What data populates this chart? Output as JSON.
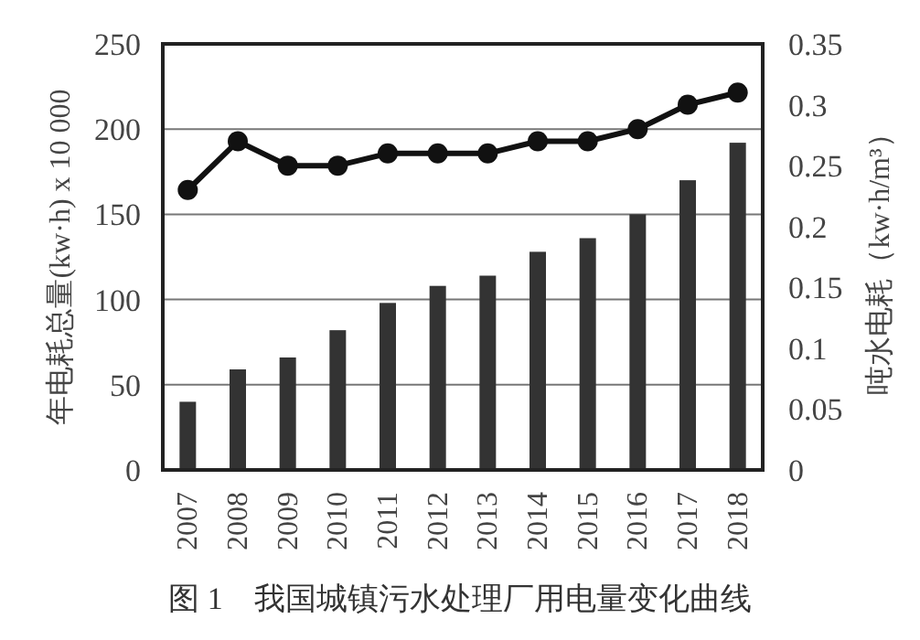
{
  "chart_data": {
    "type": "bar",
    "title": "图 1　我国城镇污水处理厂用电量变化曲线",
    "ylabel": "年电耗总量(kw·h) x 10 000",
    "y2label": "吨水电耗（kw·h/m³）",
    "categories": [
      "2007",
      "2008",
      "2009",
      "2010",
      "2011",
      "2012",
      "2013",
      "2014",
      "2015",
      "2016",
      "2017",
      "2018"
    ],
    "series": [
      {
        "color": "#333333",
        "values": [
          40,
          59,
          66,
          82,
          98,
          108,
          114,
          128,
          136,
          150,
          170,
          192
        ]
      },
      {
        "type": "line",
        "axis": "y2",
        "color": "#111111",
        "marker": "circle",
        "line_style": "solid",
        "values": [
          0.23,
          0.27,
          0.25,
          0.25,
          0.26,
          0.26,
          0.26,
          0.27,
          0.27,
          0.28,
          0.3,
          0.31
        ]
      }
    ],
    "ylim": [
      0,
      250
    ],
    "yticks": [
      0,
      50,
      100,
      150,
      200,
      250
    ],
    "y2lim": [
      0,
      0.35
    ],
    "y2ticks": [
      0,
      0.05,
      0.1,
      0.15,
      0.2,
      0.25,
      0.3,
      0.35
    ],
    "grid": "y"
  }
}
